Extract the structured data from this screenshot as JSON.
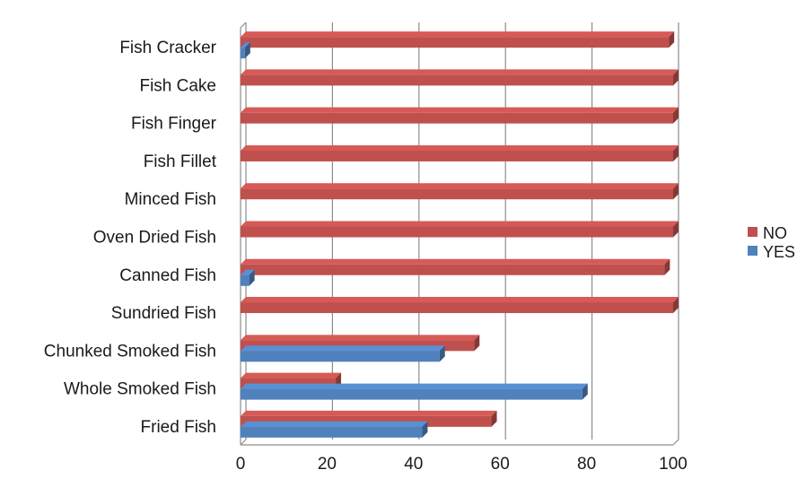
{
  "chart_data": {
    "type": "bar",
    "orientation": "horizontal",
    "style": "3d",
    "categories": [
      "Fried Fish",
      "Whole Smoked Fish",
      "Chunked Smoked Fish",
      "Sundried Fish",
      "Canned Fish",
      "Oven Dried Fish",
      "Minced Fish",
      "Fish Fillet",
      "Fish Finger",
      "Fish Cake",
      "Fish Cracker"
    ],
    "series": [
      {
        "name": "NO",
        "color": "#C0504D",
        "values": [
          58,
          22,
          54,
          100,
          98,
          100,
          100,
          100,
          100,
          100,
          99
        ]
      },
      {
        "name": "YES",
        "color": "#4F81BD",
        "values": [
          42,
          79,
          46,
          0,
          2,
          0,
          0,
          0,
          0,
          0,
          1
        ]
      }
    ],
    "xlim": [
      0,
      100
    ],
    "xticks": [
      "0",
      "20",
      "40",
      "60",
      "80",
      "100"
    ],
    "title": "",
    "xlabel": "",
    "ylabel": "",
    "grid": "vertical",
    "legend_position": "right"
  }
}
